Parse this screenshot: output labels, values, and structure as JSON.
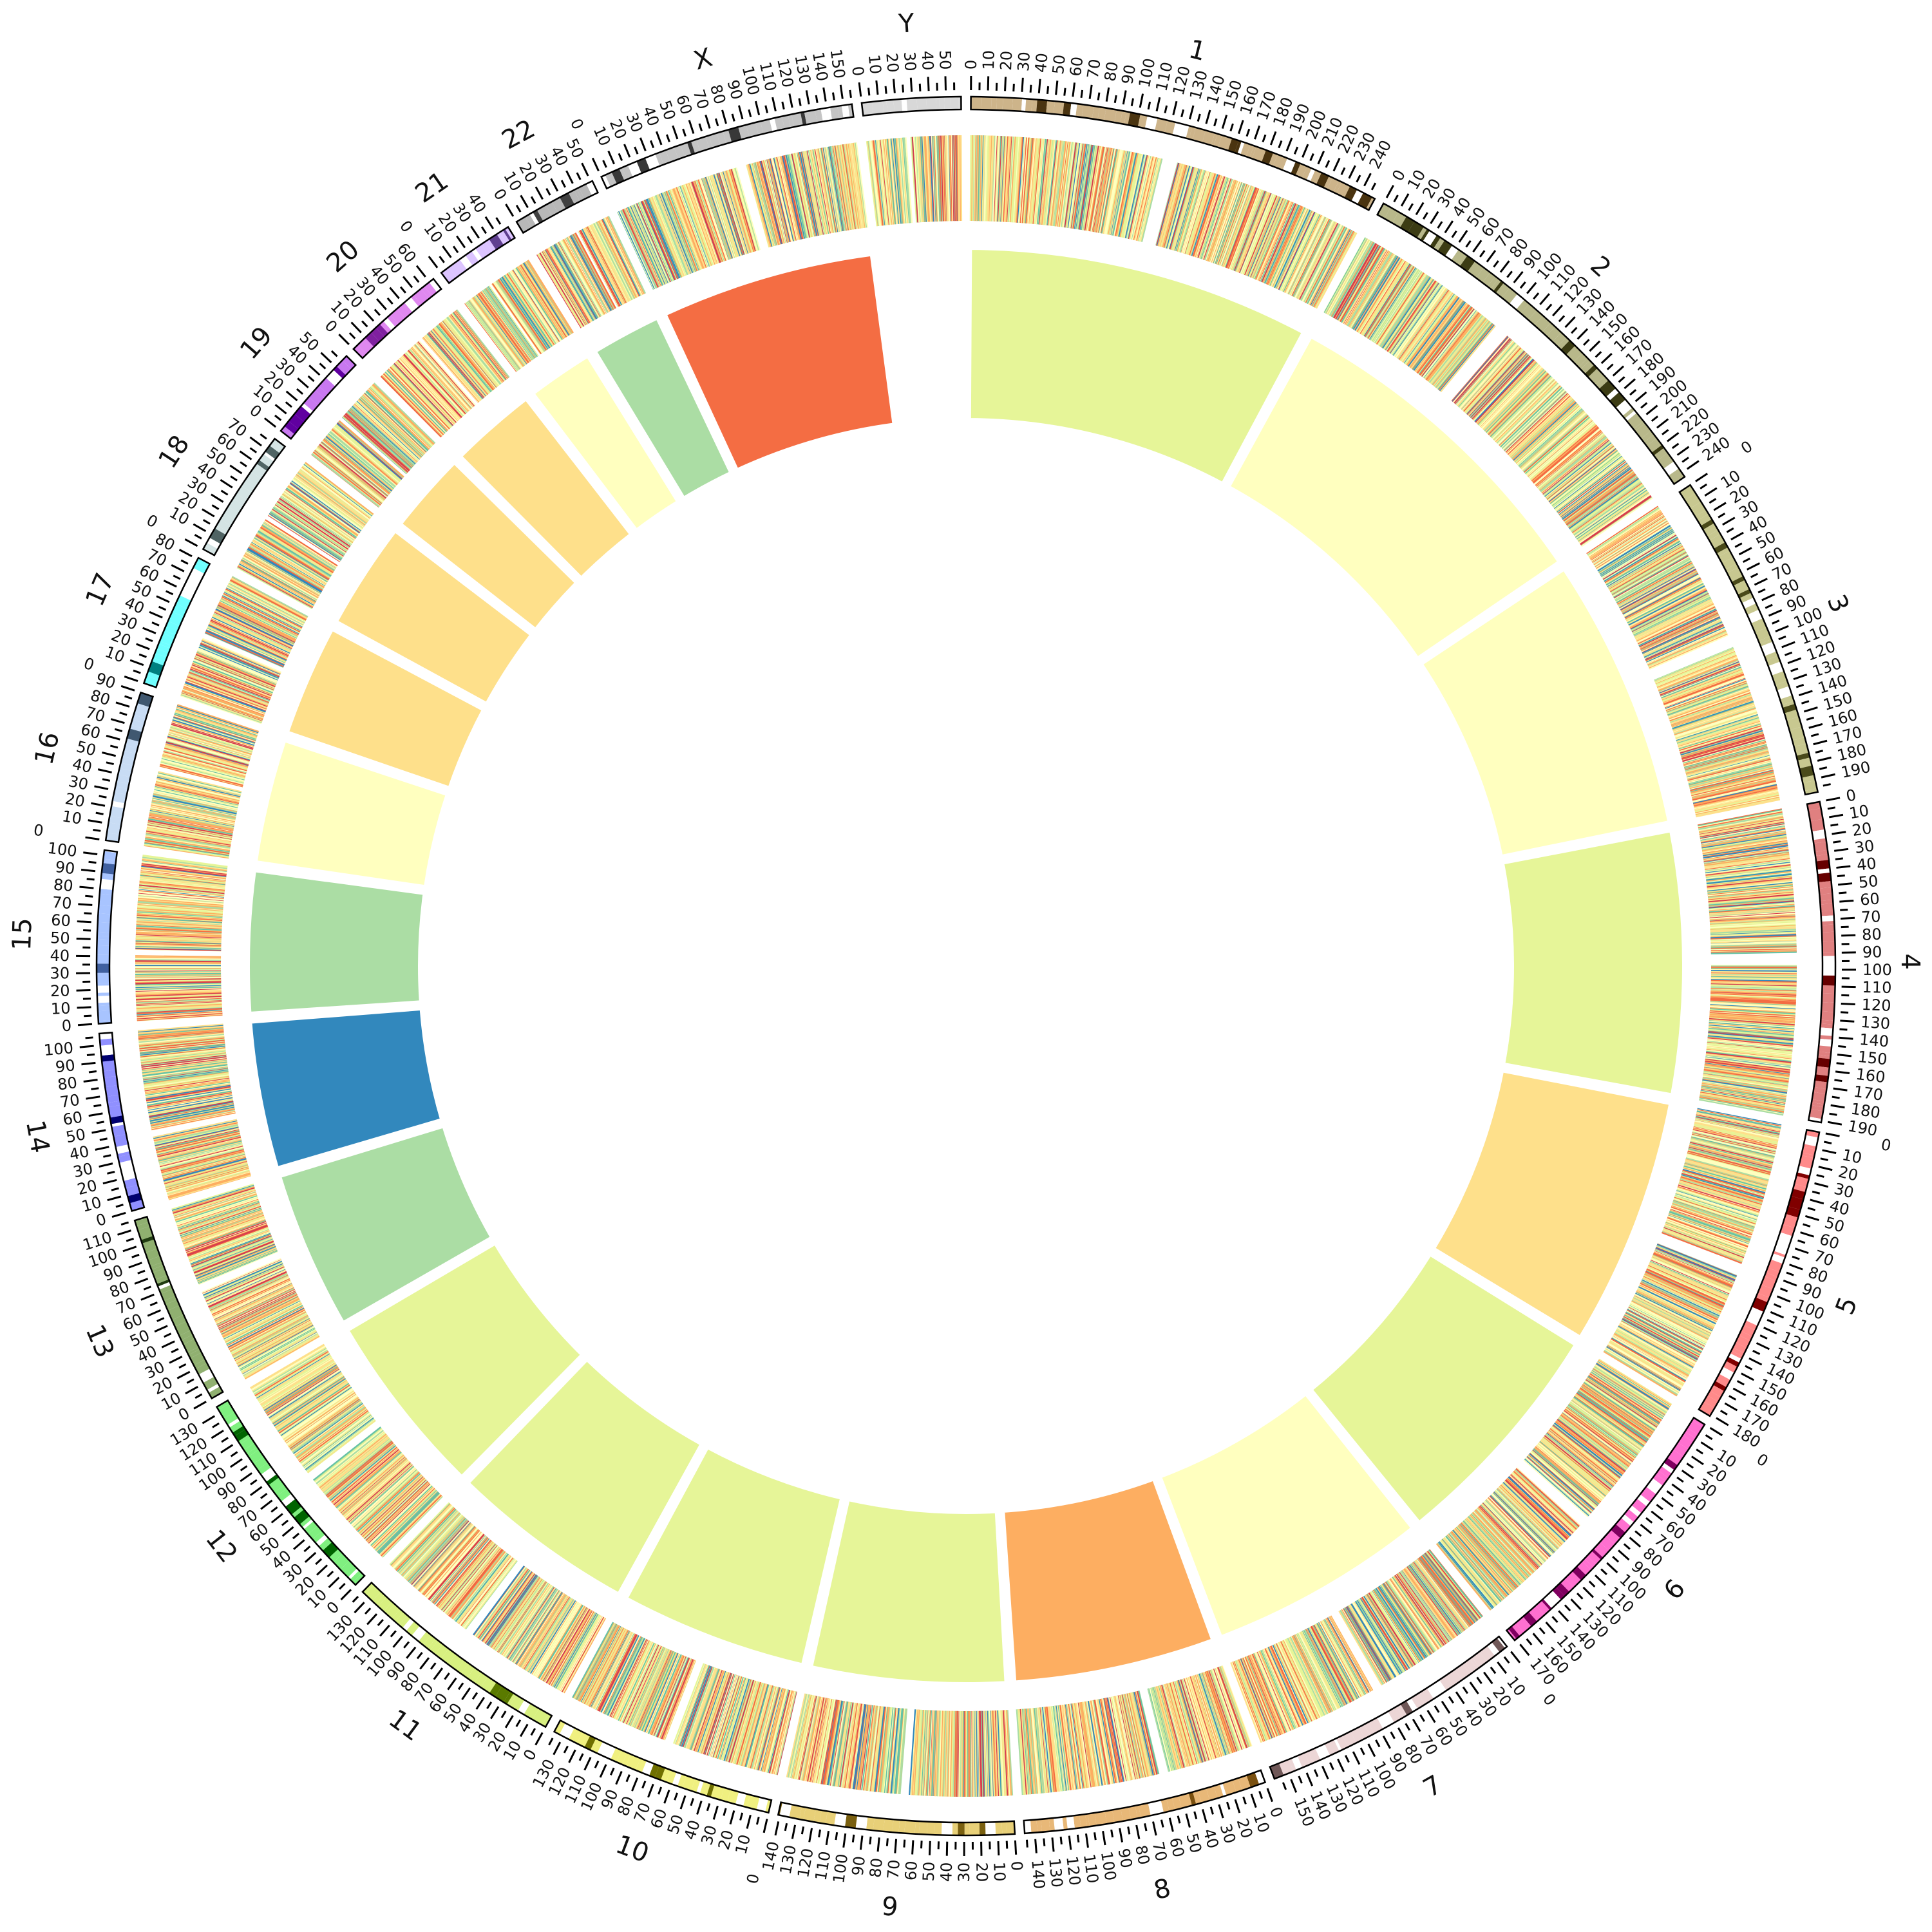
{
  "chart_data": {
    "type": "circos",
    "title": "",
    "tick_interval_mb": 10,
    "minor_tick_interval_mb": 5,
    "heatmap_palette": [
      "#d53e4f",
      "#f46d43",
      "#fdae61",
      "#fee08b",
      "#ffffbf",
      "#e6f598",
      "#abdda4",
      "#66c2a5",
      "#3288bd"
    ],
    "chromosomes": [
      {
        "name": "1",
        "length_mb": 249,
        "band_light": "#cdb48a",
        "band_dark": "#4a3410",
        "bar_color": "#e6f598"
      },
      {
        "name": "2",
        "length_mb": 243,
        "band_light": "#b8b88a",
        "band_dark": "#3c3c14",
        "bar_color": "#ffffbf"
      },
      {
        "name": "3",
        "length_mb": 198,
        "band_light": "#c8c890",
        "band_dark": "#4a4a1a",
        "bar_color": "#ffffbf"
      },
      {
        "name": "4",
        "length_mb": 191,
        "band_light": "#e08080",
        "band_dark": "#660000",
        "bar_color": "#e6f598"
      },
      {
        "name": "5",
        "length_mb": 181,
        "band_light": "#ff8a8a",
        "band_dark": "#800000",
        "bar_color": "#fee08b"
      },
      {
        "name": "6",
        "length_mb": 171,
        "band_light": "#ff70d0",
        "band_dark": "#800060",
        "bar_color": "#e6f598"
      },
      {
        "name": "7",
        "length_mb": 159,
        "band_light": "#ecd6d6",
        "band_dark": "#705858",
        "bar_color": "#ffffbf"
      },
      {
        "name": "8",
        "length_mb": 146,
        "band_light": "#e8b878",
        "band_dark": "#7a5010",
        "bar_color": "#fdae61"
      },
      {
        "name": "9",
        "length_mb": 141,
        "band_light": "#e8d078",
        "band_dark": "#7a6010",
        "bar_color": "#e6f598"
      },
      {
        "name": "10",
        "length_mb": 136,
        "band_light": "#f0f080",
        "band_dark": "#707000",
        "bar_color": "#e6f598"
      },
      {
        "name": "11",
        "length_mb": 135,
        "band_light": "#d8f080",
        "band_dark": "#5a7a00",
        "bar_color": "#e6f598"
      },
      {
        "name": "12",
        "length_mb": 134,
        "band_light": "#80f080",
        "band_dark": "#006400",
        "bar_color": "#e6f598"
      },
      {
        "name": "13",
        "length_mb": 115,
        "band_light": "#90b070",
        "band_dark": "#203c10",
        "bar_color": "#abdda4"
      },
      {
        "name": "14",
        "length_mb": 107,
        "band_light": "#9090ff",
        "band_dark": "#000070",
        "bar_color": "#3288bd"
      },
      {
        "name": "15",
        "length_mb": 103,
        "band_light": "#a8c4ff",
        "band_dark": "#4060a0",
        "bar_color": "#abdda4"
      },
      {
        "name": "16",
        "length_mb": 90,
        "band_light": "#c8dcf4",
        "band_dark": "#405870",
        "bar_color": "#ffffbf"
      },
      {
        "name": "17",
        "length_mb": 81,
        "band_light": "#70ffff",
        "band_dark": "#008080",
        "bar_color": "#fee08b"
      },
      {
        "name": "18",
        "length_mb": 78,
        "band_light": "#d4e4e4",
        "band_dark": "#506464",
        "bar_color": "#fee08b"
      },
      {
        "name": "19",
        "length_mb": 59,
        "band_light": "#c878f0",
        "band_dark": "#6000a0",
        "bar_color": "#fee08b"
      },
      {
        "name": "20",
        "length_mb": 63,
        "band_light": "#e088f0",
        "band_dark": "#8020a0",
        "bar_color": "#fee08b"
      },
      {
        "name": "21",
        "length_mb": 48,
        "band_light": "#dcc4ff",
        "band_dark": "#604090",
        "bar_color": "#ffffbf"
      },
      {
        "name": "22",
        "length_mb": 51,
        "band_light": "#b8b8b8",
        "band_dark": "#404040",
        "bar_color": "#abdda4"
      },
      {
        "name": "X",
        "length_mb": 155,
        "band_light": "#c4c4c4",
        "band_dark": "#383838",
        "bar_color": "#f46d43"
      },
      {
        "name": "Y",
        "length_mb": 59,
        "band_light": "#d8d8d8",
        "band_dark": "#9a9a9a",
        "bar_color": null
      }
    ]
  }
}
